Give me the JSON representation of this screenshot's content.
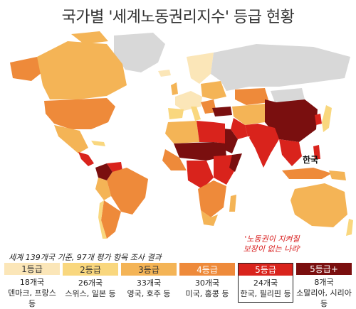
{
  "title": "국가별 '세계노동권리지수' 등급 현황",
  "map_label": "한국",
  "callout": {
    "line1": "'노동권이 지켜질",
    "line2": "보장이 없는 나라'"
  },
  "footnote": "세계 139개국 기준, 97개 평가 항목 조사 결과",
  "colors": {
    "grade1": "#fbe6b8",
    "grade2": "#f9d77e",
    "grade3": "#f4b456",
    "grade4": "#ee8a3a",
    "grade5": "#d9231c",
    "grade5plus": "#7a0f0f",
    "nodata": "#d8d8d8"
  },
  "legend": [
    {
      "grade": "1등급",
      "count": "18개국",
      "examples": "덴마크, 프랑스 등",
      "color": "#fbe6b8",
      "text_color": "#333",
      "highlight": false
    },
    {
      "grade": "2등급",
      "count": "26개국",
      "examples": "스위스, 일본 등",
      "color": "#f9d77e",
      "text_color": "#333",
      "highlight": false
    },
    {
      "grade": "3등급",
      "count": "33개국",
      "examples": "영국, 호주 등",
      "color": "#f4b456",
      "text_color": "#333",
      "highlight": false
    },
    {
      "grade": "4등급",
      "count": "30개국",
      "examples": "미국, 홍콩 등",
      "color": "#ee8a3a",
      "text_color": "#fff",
      "highlight": false
    },
    {
      "grade": "5등급",
      "count": "24개국",
      "examples": "한국, 필리핀 등",
      "color": "#d9231c",
      "text_color": "#fff",
      "highlight": true
    },
    {
      "grade": "5등급+",
      "count": "8개국",
      "examples": "소말리아, 시리아 등",
      "color": "#7a0f0f",
      "text_color": "#fff",
      "highlight": false
    }
  ]
}
